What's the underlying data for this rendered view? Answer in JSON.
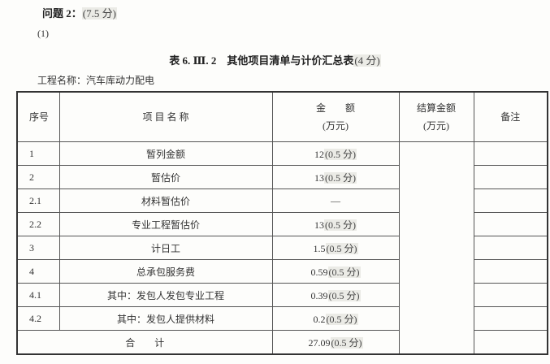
{
  "question": {
    "label": "问题 2：",
    "score": "(7.5 分)"
  },
  "subpart": "(1)",
  "table_title": {
    "text": "表 6. Ⅲ. 2　其他项目清单与计价汇总表",
    "score": "(4 分)"
  },
  "project_name": "工程名称：汽车库动力配电",
  "headers": {
    "no": "序号",
    "name": "项 目 名 称",
    "amount": "金　　额",
    "amount_unit": "(万元)",
    "settle": "结算金额",
    "settle_unit": "(万元)",
    "remark": "备注"
  },
  "rows": [
    {
      "no": "1",
      "name": "暂列金额",
      "amount": "12",
      "score": "(0.5 分)"
    },
    {
      "no": "2",
      "name": "暂估价",
      "amount": "13",
      "score": "(0.5 分)"
    },
    {
      "no": "2.1",
      "name": "材料暂估价",
      "amount": "—",
      "score": ""
    },
    {
      "no": "2.2",
      "name": "专业工程暂估价",
      "amount": "13",
      "score": "(0.5 分)"
    },
    {
      "no": "3",
      "name": "计日工",
      "amount": "1.5",
      "score": "(0.5 分)"
    },
    {
      "no": "4",
      "name": "总承包服务费",
      "amount": "0.59",
      "score": "(0.5 分)"
    },
    {
      "no": "4.1",
      "name": "其中：发包人发包专业工程",
      "amount": "0.39",
      "score": "(0.5 分)"
    },
    {
      "no": "4.2",
      "name": "其中：发包人提供材料",
      "amount": "0.2",
      "score": "(0.5 分)"
    }
  ],
  "total": {
    "label": "合　　计",
    "amount": "27.09",
    "score": "(0.5 分)"
  }
}
